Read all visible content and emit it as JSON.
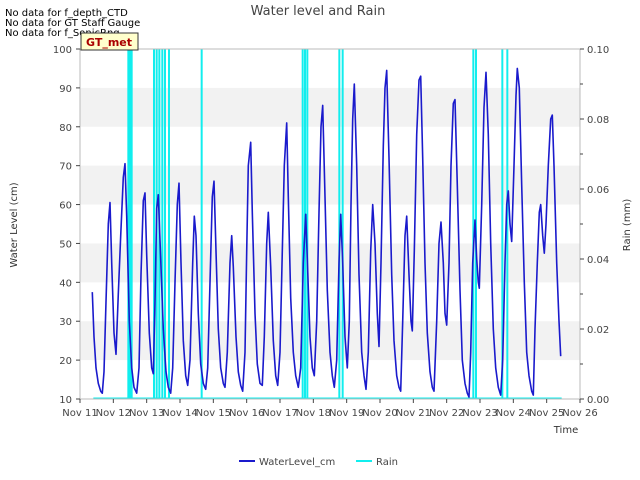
{
  "notes": [
    "No data for f_depth_CTD",
    "No data for GT Staff Gauge",
    "No data for f_SonicRng"
  ],
  "site_badge": "GT_met",
  "colors": {
    "water": "#1a1acc",
    "rain": "#11eeee",
    "band": "#f2f2f2",
    "badge_bg": "#ffffcc",
    "badge_text": "#aa0000"
  },
  "chart_data": {
    "type": "line",
    "title": "Water level and Rain",
    "xlabel": "Time",
    "ylabel": "Water Level (cm)",
    "y2label": "Rain (mm)",
    "xlim": [
      11,
      26
    ],
    "ylim": [
      10,
      100
    ],
    "y2lim": [
      0,
      0.1
    ],
    "x_tick_labels": [
      "Nov 11",
      "Nov 12",
      "Nov 13",
      "Nov 14",
      "Nov 15",
      "Nov 16",
      "Nov 17",
      "Nov 18",
      "Nov 19",
      "Nov 20",
      "Nov 21",
      "Nov 22",
      "Nov 23",
      "Nov 24",
      "Nov 25",
      "Nov 26"
    ],
    "y_ticks": [
      10,
      20,
      30,
      40,
      50,
      60,
      70,
      80,
      90,
      100
    ],
    "y2_ticks": [
      "0.00",
      "0.02",
      "0.04",
      "0.06",
      "0.08",
      "0.10"
    ],
    "legend_placement": "bottom-center",
    "series": [
      {
        "name": "WaterLevel_cm",
        "axis": "left",
        "points": [
          [
            11.37,
            37.5
          ],
          [
            11.42,
            26
          ],
          [
            11.48,
            18
          ],
          [
            11.55,
            14
          ],
          [
            11.62,
            12
          ],
          [
            11.67,
            11.5
          ],
          [
            11.72,
            17
          ],
          [
            11.78,
            35
          ],
          [
            11.85,
            55
          ],
          [
            11.9,
            60.5
          ],
          [
            11.95,
            45
          ],
          [
            12.02,
            27
          ],
          [
            12.08,
            21.5
          ],
          [
            12.15,
            37
          ],
          [
            12.22,
            52
          ],
          [
            12.3,
            67
          ],
          [
            12.35,
            70.5
          ],
          [
            12.4,
            57
          ],
          [
            12.48,
            30
          ],
          [
            12.55,
            18
          ],
          [
            12.62,
            13
          ],
          [
            12.7,
            11.5
          ],
          [
            12.77,
            18
          ],
          [
            12.83,
            42
          ],
          [
            12.9,
            61
          ],
          [
            12.95,
            63
          ],
          [
            13.0,
            47
          ],
          [
            13.08,
            27
          ],
          [
            13.15,
            18
          ],
          [
            13.2,
            16.5
          ],
          [
            13.25,
            35
          ],
          [
            13.3,
            59
          ],
          [
            13.35,
            62.5
          ],
          [
            13.42,
            46
          ],
          [
            13.5,
            28
          ],
          [
            13.58,
            17
          ],
          [
            13.65,
            13
          ],
          [
            13.72,
            11.5
          ],
          [
            13.78,
            18
          ],
          [
            13.85,
            40
          ],
          [
            13.92,
            60
          ],
          [
            13.97,
            65.5
          ],
          [
            14.03,
            45
          ],
          [
            14.1,
            25
          ],
          [
            14.17,
            16
          ],
          [
            14.23,
            13.5
          ],
          [
            14.3,
            20
          ],
          [
            14.38,
            45
          ],
          [
            14.43,
            57
          ],
          [
            14.48,
            52
          ],
          [
            14.55,
            32
          ],
          [
            14.62,
            19
          ],
          [
            14.7,
            14
          ],
          [
            14.77,
            12.5
          ],
          [
            14.83,
            18
          ],
          [
            14.9,
            40
          ],
          [
            14.97,
            62
          ],
          [
            15.02,
            66
          ],
          [
            15.08,
            48
          ],
          [
            15.15,
            28
          ],
          [
            15.22,
            18
          ],
          [
            15.3,
            14
          ],
          [
            15.35,
            13
          ],
          [
            15.42,
            22
          ],
          [
            15.5,
            45
          ],
          [
            15.55,
            52
          ],
          [
            15.6,
            44
          ],
          [
            15.68,
            26
          ],
          [
            15.75,
            17
          ],
          [
            15.82,
            13.5
          ],
          [
            15.88,
            12
          ],
          [
            15.95,
            22
          ],
          [
            16.0,
            48
          ],
          [
            16.05,
            70
          ],
          [
            16.12,
            76
          ],
          [
            16.17,
            58
          ],
          [
            16.25,
            32
          ],
          [
            16.32,
            19
          ],
          [
            16.4,
            14
          ],
          [
            16.47,
            13.5
          ],
          [
            16.53,
            26
          ],
          [
            16.6,
            50
          ],
          [
            16.65,
            58
          ],
          [
            16.72,
            44
          ],
          [
            16.8,
            25
          ],
          [
            16.87,
            16
          ],
          [
            16.93,
            13.5
          ],
          [
            17.0,
            22
          ],
          [
            17.07,
            48
          ],
          [
            17.13,
            70
          ],
          [
            17.2,
            81
          ],
          [
            17.25,
            62
          ],
          [
            17.32,
            36
          ],
          [
            17.4,
            22
          ],
          [
            17.47,
            16
          ],
          [
            17.55,
            13
          ],
          [
            17.62,
            18
          ],
          [
            17.7,
            45
          ],
          [
            17.77,
            57.5
          ],
          [
            17.83,
            43
          ],
          [
            17.9,
            26
          ],
          [
            17.97,
            18
          ],
          [
            18.03,
            16
          ],
          [
            18.1,
            30
          ],
          [
            18.17,
            58
          ],
          [
            18.23,
            80
          ],
          [
            18.28,
            85.5
          ],
          [
            18.35,
            62
          ],
          [
            18.42,
            38
          ],
          [
            18.5,
            22
          ],
          [
            18.57,
            16
          ],
          [
            18.63,
            13
          ],
          [
            18.7,
            20
          ],
          [
            18.77,
            45
          ],
          [
            18.82,
            57.5
          ],
          [
            18.88,
            45
          ],
          [
            18.95,
            26
          ],
          [
            19.02,
            18
          ],
          [
            19.08,
            30
          ],
          [
            19.13,
            60
          ],
          [
            19.18,
            82
          ],
          [
            19.23,
            91
          ],
          [
            19.3,
            70
          ],
          [
            19.37,
            42
          ],
          [
            19.45,
            22
          ],
          [
            19.52,
            16
          ],
          [
            19.58,
            12.5
          ],
          [
            19.65,
            22
          ],
          [
            19.72,
            48
          ],
          [
            19.78,
            60
          ],
          [
            19.85,
            50
          ],
          [
            19.92,
            32
          ],
          [
            19.97,
            23.5
          ],
          [
            20.03,
            45
          ],
          [
            20.1,
            75
          ],
          [
            20.15,
            90
          ],
          [
            20.2,
            94.5
          ],
          [
            20.27,
            72
          ],
          [
            20.35,
            42
          ],
          [
            20.42,
            25
          ],
          [
            20.5,
            16
          ],
          [
            20.57,
            13
          ],
          [
            20.62,
            12
          ],
          [
            20.68,
            30
          ],
          [
            20.75,
            52
          ],
          [
            20.8,
            57
          ],
          [
            20.87,
            42
          ],
          [
            20.93,
            30
          ],
          [
            20.97,
            27.5
          ],
          [
            21.03,
            48
          ],
          [
            21.1,
            78
          ],
          [
            21.17,
            92
          ],
          [
            21.22,
            93
          ],
          [
            21.28,
            72
          ],
          [
            21.35,
            45
          ],
          [
            21.42,
            27
          ],
          [
            21.5,
            17
          ],
          [
            21.57,
            13
          ],
          [
            21.62,
            12
          ],
          [
            21.7,
            30
          ],
          [
            21.77,
            50
          ],
          [
            21.83,
            55.5
          ],
          [
            21.9,
            45
          ],
          [
            21.95,
            32
          ],
          [
            22.0,
            29
          ],
          [
            22.07,
            45
          ],
          [
            22.13,
            70
          ],
          [
            22.2,
            86
          ],
          [
            22.25,
            87
          ],
          [
            22.32,
            65
          ],
          [
            22.4,
            38
          ],
          [
            22.47,
            20
          ],
          [
            22.55,
            14
          ],
          [
            22.62,
            11.5
          ],
          [
            22.67,
            10.5
          ],
          [
            22.72,
            22
          ],
          [
            22.78,
            45
          ],
          [
            22.85,
            56
          ],
          [
            22.9,
            46
          ],
          [
            22.95,
            40
          ],
          [
            22.98,
            38.5
          ],
          [
            23.05,
            60
          ],
          [
            23.12,
            85
          ],
          [
            23.18,
            94
          ],
          [
            23.25,
            78
          ],
          [
            23.32,
            50
          ],
          [
            23.4,
            28
          ],
          [
            23.47,
            18
          ],
          [
            23.55,
            13
          ],
          [
            23.62,
            11
          ],
          [
            23.68,
            20
          ],
          [
            23.75,
            45
          ],
          [
            23.8,
            60
          ],
          [
            23.85,
            63.5
          ],
          [
            23.9,
            55
          ],
          [
            23.95,
            50.5
          ],
          [
            24.02,
            70
          ],
          [
            24.08,
            88
          ],
          [
            24.12,
            95
          ],
          [
            24.18,
            90
          ],
          [
            24.25,
            65
          ],
          [
            24.33,
            40
          ],
          [
            24.4,
            22
          ],
          [
            24.47,
            16
          ],
          [
            24.55,
            12
          ],
          [
            24.6,
            11
          ],
          [
            24.65,
            28
          ],
          [
            24.72,
            45
          ],
          [
            24.78,
            58
          ],
          [
            24.82,
            60
          ],
          [
            24.88,
            52
          ],
          [
            24.93,
            47.5
          ],
          [
            24.98,
            55
          ],
          [
            25.05,
            70
          ],
          [
            25.12,
            82
          ],
          [
            25.17,
            83
          ],
          [
            25.22,
            70
          ],
          [
            25.3,
            45
          ],
          [
            25.37,
            30
          ],
          [
            25.42,
            21
          ]
        ]
      },
      {
        "name": "Rain",
        "axis": "right",
        "baseline": 0,
        "bars": [
          [
            12.45,
            0.1
          ],
          [
            12.5,
            0.1
          ],
          [
            12.55,
            0.1
          ],
          [
            13.22,
            0.1
          ],
          [
            13.3,
            0.1
          ],
          [
            13.38,
            0.1
          ],
          [
            13.47,
            0.1
          ],
          [
            13.55,
            0.1
          ],
          [
            13.67,
            0.1
          ],
          [
            14.65,
            0.1
          ],
          [
            17.68,
            0.1
          ],
          [
            17.75,
            0.1
          ],
          [
            17.82,
            0.1
          ],
          [
            18.78,
            0.1
          ],
          [
            18.88,
            0.1
          ],
          [
            22.8,
            0.1
          ],
          [
            22.88,
            0.1
          ],
          [
            23.67,
            0.1
          ],
          [
            23.82,
            0.1
          ]
        ]
      }
    ]
  }
}
